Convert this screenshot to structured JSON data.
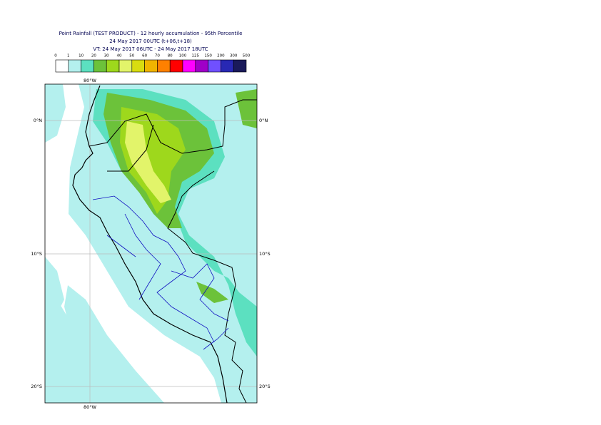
{
  "header": {
    "title": "Point Rainfall (TEST PRODUCT) - 12 hourly accumulation - 95th Percentile",
    "run": "24 May 2017 00UTC (t+06,t+18)",
    "validity": "VT: 24 May 2017 06UTC - 24 May 2017 18UTC"
  },
  "legend": {
    "levels": [
      0,
      1,
      10,
      20,
      30,
      40,
      50,
      60,
      70,
      80,
      100,
      125,
      150,
      200,
      300,
      500
    ],
    "colors": [
      "#ffffff",
      "#b4f0ee",
      "#5ce0c0",
      "#6cc23a",
      "#9ed81c",
      "#e2f46a",
      "#d8dc10",
      "#f0b400",
      "#ff8000",
      "#ff0000",
      "#ff00ff",
      "#a000c8",
      "#7050ff",
      "#2828b4",
      "#1a1a5a"
    ]
  },
  "map": {
    "longitude_label": "80°W",
    "latitude_labels": [
      "0°N",
      "10°S",
      "20°S"
    ]
  }
}
